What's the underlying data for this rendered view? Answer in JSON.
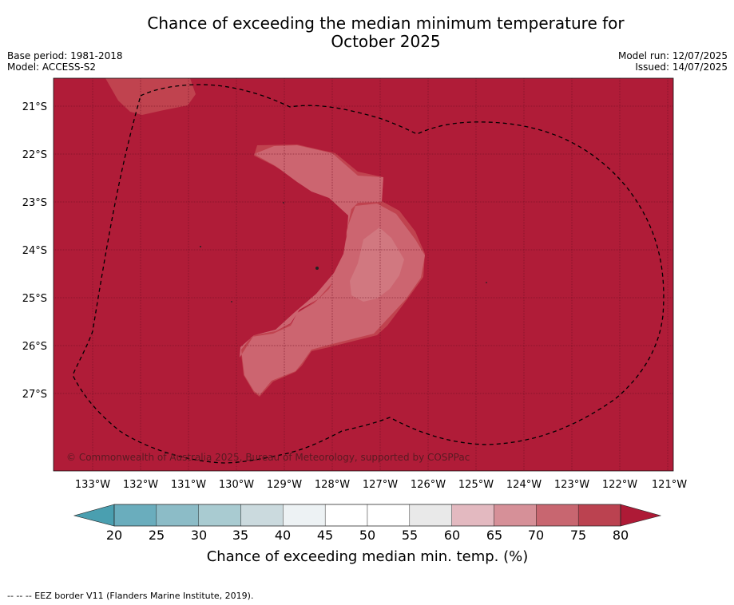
{
  "title_line1": "Chance of exceeding the median minimum temperature for",
  "title_line2": "October 2025",
  "meta_left": {
    "base_period": "Base period: 1981-2018",
    "model": "Model: ACCESS-S2"
  },
  "meta_right": {
    "model_run": "Model run: 12/07/2025",
    "issued": "Issued: 14/07/2025"
  },
  "map": {
    "lat_labels": [
      "21°S",
      "22°S",
      "23°S",
      "24°S",
      "25°S",
      "26°S",
      "27°S"
    ],
    "lon_labels": [
      "133°W",
      "132°W",
      "131°W",
      "130°W",
      "129°W",
      "128°W",
      "127°W",
      "126°W",
      "125°W",
      "124°W",
      "123°W",
      "122°W",
      "121°W"
    ],
    "copyright": "© Commonwealth of Australia 2025, Bureau of Meteorology, supported by COSPPac",
    "background_color": "#b01c38"
  },
  "colorbar": {
    "ticks": [
      "20",
      "25",
      "30",
      "35",
      "40",
      "45",
      "50",
      "55",
      "60",
      "65",
      "70",
      "75",
      "80"
    ],
    "colors": [
      "#6aadbd",
      "#8cbcc7",
      "#a9cbd1",
      "#cbdade",
      "#edf2f4",
      "#ffffff",
      "#ffffff",
      "#e9e9e9",
      "#e3b9c0",
      "#d69098",
      "#c86670",
      "#bb4250"
    ],
    "low_extend_color": "#4a9fb0",
    "high_extend_color": "#ae1a36",
    "label": "Chance of exceeding median min. temp. (%)"
  },
  "footnote": "--  --  -- EEZ border V11 (Flanders Marine Institute, 2019)."
}
